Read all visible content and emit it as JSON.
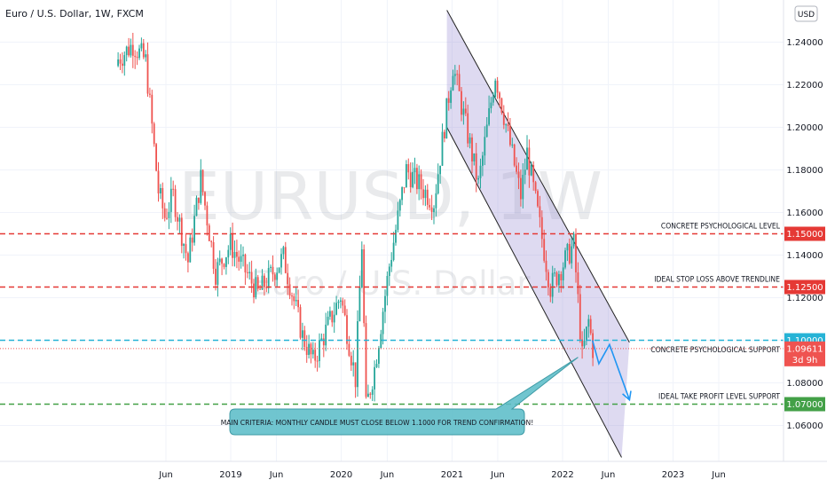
{
  "chart_data": {
    "type": "candlestick",
    "title": "Euro / U.S. Dollar, 1W, FXCM",
    "watermark": {
      "ticker": "EURUSD, 1W",
      "name": "Euro / U.S. Dollar"
    },
    "currency_button": "USD",
    "ylim": [
      1.045,
      1.255
    ],
    "y_ticks": [
      "1.24000",
      "1.22000",
      "1.20000",
      "1.18000",
      "1.16000",
      "1.14000",
      "1.12000",
      "1.10000",
      "1.08000",
      "1.06000"
    ],
    "x_ticks": [
      "Jun",
      "2019",
      "Jun",
      "2020",
      "Jun",
      "2021",
      "Jun",
      "2022",
      "Jun",
      "2023",
      "Jun"
    ],
    "colors": {
      "up": "#26a69a",
      "down": "#ef5350",
      "red_line": "#e53935",
      "blue_line": "#26b3d6",
      "green_line": "#43a047",
      "channel": "#9c8fd3",
      "callout": "#5cbdc8"
    },
    "levels": [
      {
        "value": 1.15,
        "label": "CONCRETE PSYCHOLOGICAL LEVEL",
        "tag": "1.15000",
        "color": "#e53935"
      },
      {
        "value": 1.125,
        "label": "IDEAL STOP LOSS ABOVE TRENDLINE",
        "tag": "1.12500",
        "color": "#e53935"
      },
      {
        "value": 1.1,
        "label": "",
        "tag": "1.10000",
        "color": "#26b3d6"
      },
      {
        "value": 1.07,
        "label": "IDEAL TAKE PROFIT LEVEL SUPPORT",
        "tag": "1.07000",
        "color": "#43a047"
      }
    ],
    "current_price": {
      "value": 1.09611,
      "tag": "1.09611",
      "countdown": "3d 9h",
      "label": "CONCRETE PSYCHOLOGICAL SUPPORT"
    },
    "channel": {
      "upper": [
        [
          "2020-12-15",
          1.255
        ],
        [
          "2022-08-10",
          1.099
        ]
      ],
      "lower": [
        [
          "2020-12-15",
          1.2
        ],
        [
          "2022-07-15",
          1.045
        ]
      ]
    },
    "projection": [
      [
        "2022-04-10",
        1.1
      ],
      [
        "2022-05-01",
        1.089
      ],
      [
        "2022-06-05",
        1.098
      ],
      [
        "2022-08-10",
        1.072
      ]
    ],
    "callout": "MAIN CRITERIA: MONTHLY CANDLE MUST CLOSE BELOW 1.1000 FOR TREND CONFIRMATION!",
    "series_anchors": [
      [
        "2017-12-25",
        1.232
      ],
      [
        "2018-02-12",
        1.239
      ],
      [
        "2018-03-26",
        1.231
      ],
      [
        "2018-05-07",
        1.17
      ],
      [
        "2018-05-28",
        1.158
      ],
      [
        "2018-06-25",
        1.168
      ],
      [
        "2018-08-13",
        1.137
      ],
      [
        "2018-09-24",
        1.176
      ],
      [
        "2018-11-12",
        1.132
      ],
      [
        "2018-12-31",
        1.145
      ],
      [
        "2019-04-01",
        1.122
      ],
      [
        "2019-06-24",
        1.139
      ],
      [
        "2019-08-26",
        1.102
      ],
      [
        "2019-09-30",
        1.09
      ],
      [
        "2019-12-30",
        1.121
      ],
      [
        "2020-02-17",
        1.082
      ],
      [
        "2020-03-09",
        1.145
      ],
      [
        "2020-03-23",
        1.068
      ],
      [
        "2020-04-20",
        1.087
      ],
      [
        "2020-06-08",
        1.135
      ],
      [
        "2020-08-03",
        1.18
      ],
      [
        "2020-11-02",
        1.165
      ],
      [
        "2021-01-04",
        1.229
      ],
      [
        "2021-03-29",
        1.173
      ],
      [
        "2021-05-24",
        1.225
      ],
      [
        "2021-08-16",
        1.168
      ],
      [
        "2021-09-06",
        1.188
      ],
      [
        "2021-11-22",
        1.125
      ],
      [
        "2022-02-07",
        1.145
      ],
      [
        "2022-03-07",
        1.092
      ],
      [
        "2022-03-28",
        1.109
      ],
      [
        "2022-04-11",
        1.096
      ]
    ]
  }
}
